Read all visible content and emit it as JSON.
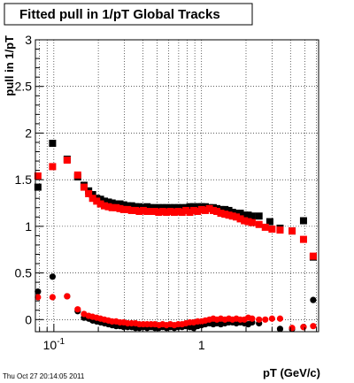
{
  "chart_data": {
    "type": "scatter",
    "title": "Fitted pull in 1/pT  Global Tracks",
    "xlabel": "pT (GeV/c)",
    "ylabel": "pull in 1/pT",
    "x_scale": "log",
    "xlim": [
      0.075,
      6.2
    ],
    "ylim": [
      -0.13,
      3.0
    ],
    "grid": true,
    "x_major_ticks": [
      {
        "value": 0.1,
        "base": "10",
        "exp": "-1"
      },
      {
        "value": 1,
        "base": "1",
        "exp": ""
      }
    ],
    "y_ticks": [
      {
        "value": 0,
        "label": "0"
      },
      {
        "value": 0.5,
        "label": "0.5"
      },
      {
        "value": 1,
        "label": "1"
      },
      {
        "value": 1.5,
        "label": "1.5"
      },
      {
        "value": 2,
        "label": "2"
      },
      {
        "value": 2.5,
        "label": "2.5"
      },
      {
        "value": 3,
        "label": "3"
      }
    ],
    "series": [
      {
        "color": "#000000",
        "marker": "square",
        "points": [
          [
            0.078,
            1.42
          ],
          [
            0.098,
            1.89
          ],
          [
            0.123,
            1.72
          ],
          [
            0.145,
            1.53
          ],
          [
            0.16,
            1.44
          ],
          [
            0.172,
            1.38
          ],
          [
            0.183,
            1.34
          ],
          [
            0.195,
            1.3
          ],
          [
            0.207,
            1.29
          ],
          [
            0.22,
            1.27
          ],
          [
            0.234,
            1.26
          ],
          [
            0.248,
            1.25
          ],
          [
            0.264,
            1.24
          ],
          [
            0.28,
            1.24
          ],
          [
            0.297,
            1.23
          ],
          [
            0.316,
            1.22
          ],
          [
            0.336,
            1.22
          ],
          [
            0.357,
            1.21
          ],
          [
            0.379,
            1.21
          ],
          [
            0.403,
            1.2
          ],
          [
            0.428,
            1.21
          ],
          [
            0.455,
            1.2
          ],
          [
            0.483,
            1.2
          ],
          [
            0.513,
            1.2
          ],
          [
            0.545,
            1.2
          ],
          [
            0.579,
            1.2
          ],
          [
            0.615,
            1.2
          ],
          [
            0.654,
            1.2
          ],
          [
            0.695,
            1.2
          ],
          [
            0.738,
            1.2
          ],
          [
            0.784,
            1.2
          ],
          [
            0.833,
            1.21
          ],
          [
            0.885,
            1.21
          ],
          [
            0.941,
            1.21
          ],
          [
            1.0,
            1.21
          ],
          [
            1.06,
            1.21
          ],
          [
            1.13,
            1.2
          ],
          [
            1.2,
            1.2
          ],
          [
            1.27,
            1.19
          ],
          [
            1.35,
            1.18
          ],
          [
            1.44,
            1.18
          ],
          [
            1.53,
            1.17
          ],
          [
            1.62,
            1.15
          ],
          [
            1.72,
            1.14
          ],
          [
            1.83,
            1.14
          ],
          [
            1.95,
            1.12
          ],
          [
            2.07,
            1.12
          ],
          [
            2.2,
            1.11
          ],
          [
            2.45,
            1.11
          ],
          [
            2.9,
            1.05
          ],
          [
            3.4,
            0.98
          ],
          [
            4.1,
            0.95
          ],
          [
            4.9,
            1.06
          ],
          [
            5.7,
            0.67
          ]
        ]
      },
      {
        "color": "#ff0000",
        "marker": "square",
        "points": [
          [
            0.078,
            1.54
          ],
          [
            0.098,
            1.64
          ],
          [
            0.123,
            1.71
          ],
          [
            0.145,
            1.55
          ],
          [
            0.16,
            1.42
          ],
          [
            0.172,
            1.35
          ],
          [
            0.183,
            1.3
          ],
          [
            0.195,
            1.27
          ],
          [
            0.207,
            1.24
          ],
          [
            0.22,
            1.22
          ],
          [
            0.234,
            1.21
          ],
          [
            0.248,
            1.2
          ],
          [
            0.264,
            1.2
          ],
          [
            0.28,
            1.19
          ],
          [
            0.297,
            1.18
          ],
          [
            0.316,
            1.18
          ],
          [
            0.336,
            1.17
          ],
          [
            0.357,
            1.17
          ],
          [
            0.379,
            1.16
          ],
          [
            0.403,
            1.17
          ],
          [
            0.428,
            1.16
          ],
          [
            0.455,
            1.16
          ],
          [
            0.483,
            1.16
          ],
          [
            0.513,
            1.15
          ],
          [
            0.545,
            1.16
          ],
          [
            0.579,
            1.15
          ],
          [
            0.615,
            1.16
          ],
          [
            0.654,
            1.15
          ],
          [
            0.695,
            1.16
          ],
          [
            0.738,
            1.15
          ],
          [
            0.784,
            1.17
          ],
          [
            0.833,
            1.15
          ],
          [
            0.885,
            1.17
          ],
          [
            0.941,
            1.16
          ],
          [
            1.0,
            1.18
          ],
          [
            1.06,
            1.17
          ],
          [
            1.13,
            1.19
          ],
          [
            1.2,
            1.17
          ],
          [
            1.27,
            1.16
          ],
          [
            1.35,
            1.14
          ],
          [
            1.44,
            1.13
          ],
          [
            1.53,
            1.12
          ],
          [
            1.62,
            1.11
          ],
          [
            1.72,
            1.1
          ],
          [
            1.83,
            1.08
          ],
          [
            1.95,
            1.06
          ],
          [
            2.07,
            1.05
          ],
          [
            2.2,
            1.04
          ],
          [
            2.45,
            1.02
          ],
          [
            2.7,
            0.99
          ],
          [
            3.0,
            0.97
          ],
          [
            3.4,
            0.96
          ],
          [
            4.1,
            0.95
          ],
          [
            4.9,
            0.86
          ],
          [
            5.7,
            0.68
          ]
        ]
      },
      {
        "color": "#000000",
        "marker": "circle",
        "points": [
          [
            0.078,
            0.3
          ],
          [
            0.098,
            0.46
          ],
          [
            0.123,
            0.25
          ],
          [
            0.145,
            0.09
          ],
          [
            0.16,
            0.02
          ],
          [
            0.172,
            0.01
          ],
          [
            0.183,
            -0.01
          ],
          [
            0.195,
            -0.02
          ],
          [
            0.207,
            -0.03
          ],
          [
            0.22,
            -0.04
          ],
          [
            0.234,
            -0.05
          ],
          [
            0.248,
            -0.06
          ],
          [
            0.264,
            -0.07
          ],
          [
            0.28,
            -0.07
          ],
          [
            0.297,
            -0.08
          ],
          [
            0.316,
            -0.08
          ],
          [
            0.336,
            -0.08
          ],
          [
            0.357,
            -0.09
          ],
          [
            0.379,
            -0.09
          ],
          [
            0.403,
            -0.08
          ],
          [
            0.428,
            -0.09
          ],
          [
            0.455,
            -0.08
          ],
          [
            0.483,
            -0.09
          ],
          [
            0.513,
            -0.09
          ],
          [
            0.545,
            -0.08
          ],
          [
            0.579,
            -0.09
          ],
          [
            0.615,
            -0.08
          ],
          [
            0.654,
            -0.09
          ],
          [
            0.695,
            -0.08
          ],
          [
            0.738,
            -0.08
          ],
          [
            0.784,
            -0.07
          ],
          [
            0.833,
            -0.08
          ],
          [
            0.885,
            -0.09
          ],
          [
            0.941,
            -0.07
          ],
          [
            1.0,
            -0.06
          ],
          [
            1.06,
            -0.05
          ],
          [
            1.13,
            -0.04
          ],
          [
            1.2,
            -0.05
          ],
          [
            1.27,
            -0.04
          ],
          [
            1.35,
            -0.05
          ],
          [
            1.44,
            -0.04
          ],
          [
            1.53,
            -0.03
          ],
          [
            1.62,
            -0.03
          ],
          [
            1.72,
            -0.04
          ],
          [
            1.83,
            -0.03
          ],
          [
            1.95,
            -0.04
          ],
          [
            2.07,
            -0.05
          ],
          [
            2.2,
            -0.03
          ],
          [
            2.45,
            -0.04
          ],
          [
            3.4,
            -0.1
          ],
          [
            4.1,
            -0.1
          ],
          [
            4.9,
            -0.08
          ],
          [
            5.7,
            0.21
          ]
        ]
      },
      {
        "color": "#ff0000",
        "marker": "circle",
        "points": [
          [
            0.078,
            0.24
          ],
          [
            0.098,
            0.24
          ],
          [
            0.123,
            0.25
          ],
          [
            0.145,
            0.11
          ],
          [
            0.16,
            0.06
          ],
          [
            0.172,
            0.04
          ],
          [
            0.183,
            0.03
          ],
          [
            0.195,
            0.02
          ],
          [
            0.207,
            0.01
          ],
          [
            0.22,
            0.0
          ],
          [
            0.234,
            -0.01
          ],
          [
            0.248,
            -0.02
          ],
          [
            0.264,
            -0.02
          ],
          [
            0.28,
            -0.03
          ],
          [
            0.297,
            -0.03
          ],
          [
            0.316,
            -0.04
          ],
          [
            0.336,
            -0.04
          ],
          [
            0.357,
            -0.04
          ],
          [
            0.379,
            -0.05
          ],
          [
            0.403,
            -0.05
          ],
          [
            0.428,
            -0.05
          ],
          [
            0.455,
            -0.05
          ],
          [
            0.483,
            -0.05
          ],
          [
            0.513,
            -0.06
          ],
          [
            0.545,
            -0.05
          ],
          [
            0.579,
            -0.06
          ],
          [
            0.615,
            -0.05
          ],
          [
            0.654,
            -0.06
          ],
          [
            0.695,
            -0.05
          ],
          [
            0.738,
            -0.05
          ],
          [
            0.784,
            -0.04
          ],
          [
            0.833,
            -0.03
          ],
          [
            0.885,
            -0.03
          ],
          [
            0.941,
            -0.02
          ],
          [
            1.0,
            -0.02
          ],
          [
            1.06,
            -0.01
          ],
          [
            1.13,
            0.0
          ],
          [
            1.2,
            0.01
          ],
          [
            1.27,
            0.0
          ],
          [
            1.35,
            0.01
          ],
          [
            1.44,
            0.0
          ],
          [
            1.53,
            0.01
          ],
          [
            1.62,
            0.0
          ],
          [
            1.72,
            0.01
          ],
          [
            1.83,
            0.0
          ],
          [
            1.95,
            0.0
          ],
          [
            2.07,
            0.02
          ],
          [
            2.2,
            0.01
          ],
          [
            2.45,
            0.0
          ],
          [
            2.7,
            0.0
          ],
          [
            3.0,
            0.01
          ],
          [
            3.4,
            0.01
          ],
          [
            4.1,
            -0.09
          ],
          [
            4.9,
            -0.08
          ],
          [
            5.7,
            -0.07
          ]
        ]
      }
    ]
  },
  "footer": {
    "timestamp": "Thu Oct 27 20:14:05 2011"
  }
}
